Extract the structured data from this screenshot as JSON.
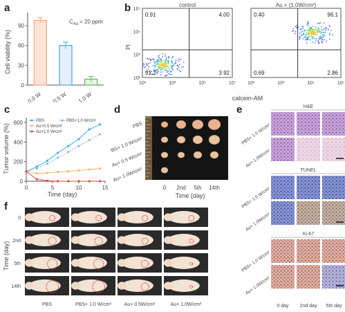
{
  "panel_labels": {
    "a": "a",
    "b": "b",
    "c": "c",
    "d": "d",
    "e": "e",
    "f": "f"
  },
  "colors": {
    "pbs": "#f4a582",
    "pbs_light": "#fbe3d6",
    "w05": "#4da3d9",
    "w1": "#63b35a",
    "series_pbs": "#3ab0e6",
    "series_pbs1w": "#8aaee6",
    "series_au05": "#f7b56a",
    "series_au1": "#e04444",
    "he": "#9a5fb8",
    "tunel": "#3b4fa8",
    "ki67": "#c47a62",
    "tumor_red": "#e03030"
  },
  "panel_a": {
    "annotation": "C",
    "annotation_sub": "Au",
    "annotation_tail": "= 20 ppm",
    "chart_data": {
      "type": "bar",
      "categories": [
        "0.0 W",
        "0.5 W",
        "1.0 W"
      ],
      "values": [
        98,
        60,
        9
      ],
      "errors": [
        4,
        5,
        4
      ],
      "ylabel": "Cell viability (%)",
      "ylim": [
        0,
        110
      ],
      "yticks": [
        "0",
        "30",
        "60",
        "90"
      ]
    }
  },
  "panel_b": {
    "plots": [
      {
        "title": "control",
        "quadrants": [
          "0.91",
          "4.00",
          "91.2",
          "3.92"
        ]
      },
      {
        "title": "Au + (1.0W/cm²)",
        "quadrants": [
          "0.40",
          "96.1",
          "0.69",
          "2.86"
        ]
      }
    ],
    "ylabel": "PI",
    "xlabel": "calcein-AM",
    "yticks": [
      "10⁷",
      "10⁵",
      "10³",
      "10¹"
    ],
    "xticks": [
      "10¹",
      "10³",
      "10⁵",
      "10⁷"
    ]
  },
  "panel_c": {
    "chart_data": {
      "type": "line",
      "x": [
        0,
        2,
        4,
        6,
        8,
        10,
        12,
        14
      ],
      "series": [
        {
          "name": "PBS",
          "values": [
            100,
            150,
            210,
            290,
            360,
            430,
            530,
            580
          ]
        },
        {
          "name": "PBS+1.0 W/cm²",
          "values": [
            100,
            130,
            180,
            240,
            300,
            360,
            420,
            480
          ]
        },
        {
          "name": "Au+0.5 W/cm²",
          "values": [
            100,
            80,
            85,
            95,
            100,
            110,
            120,
            130
          ]
        },
        {
          "name": "Au+1.0 W/cm²",
          "values": [
            100,
            20,
            5,
            0,
            0,
            0,
            0,
            0
          ]
        }
      ],
      "xlabel": "Time (day)",
      "ylabel": "Tumor volume (%)",
      "xlim": [
        0,
        15
      ],
      "ylim": [
        0,
        650
      ],
      "xticks": [
        "0",
        "5",
        "10",
        "15"
      ],
      "yticks": [
        "0",
        "200",
        "400",
        "600"
      ]
    }
  },
  "panel_d": {
    "rows": [
      "PBS",
      "PBS+ 1.0 W/cm²",
      "Au+ 0.5 W/cm²",
      "Au+ 1.0W/cm²"
    ],
    "cols": [
      "0",
      "2nd",
      "5th",
      "14th"
    ],
    "xlabel": "Time (day)"
  },
  "panel_e": {
    "sections": [
      {
        "title": "H&E",
        "rows": [
          "PBS+ 1.0 W/cm²",
          "Au+ 1.0W/cm²"
        ]
      },
      {
        "title": "TUNEL",
        "rows": [
          "PBS+ 1.0 W/cm²",
          "Au+ 1.0W/cm²"
        ]
      },
      {
        "title": "Ki-67",
        "rows": [
          "PBS+ 1.0 W/cm²",
          "Au+ 1.0W/cm²"
        ]
      }
    ],
    "cols": [
      "0 day",
      "2nd day",
      "5th day"
    ]
  },
  "panel_f": {
    "ylabel": "Time (day)",
    "rows": [
      "0",
      "2nd",
      "5th",
      "14th"
    ],
    "cols": [
      "PBS",
      "PBS+ 1.0 W/cm²",
      "Au+ 0.5W/cm²",
      "Au+ 1.0W/cm²"
    ]
  }
}
